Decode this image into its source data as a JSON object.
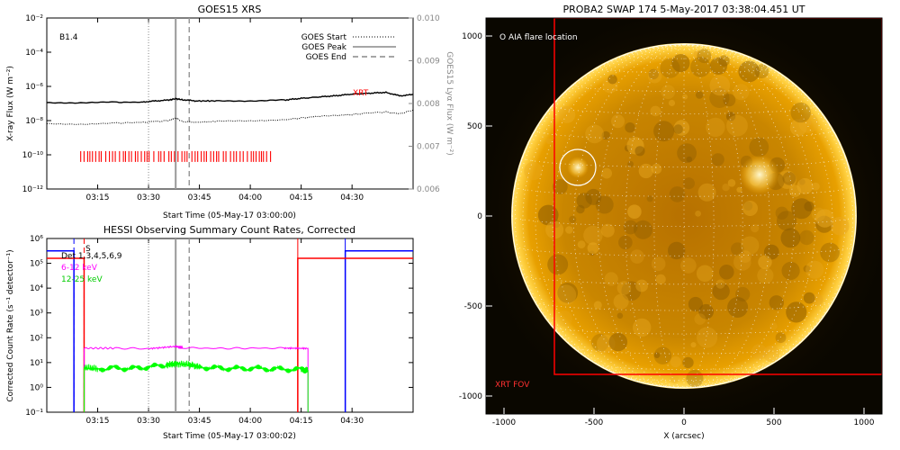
{
  "chart_data": [
    {
      "type": "line",
      "title": "GOES15 XRS",
      "xlabel": "Start Time (05-May-17 03:00:00)",
      "ylabel": "X-ray Flux (W m⁻²)",
      "y2label": "GOES15 Lyα Flux (W m⁻²)",
      "annotation": "B1.4",
      "x_ticks": [
        "03:15",
        "03:30",
        "03:45",
        "04:00",
        "04:15",
        "04:30"
      ],
      "y_ticks": [
        "10⁻²",
        "10⁻⁴",
        "10⁻⁶",
        "10⁻⁸",
        "10⁻¹⁰",
        "10⁻¹²"
      ],
      "y2_ticks": [
        "0.010",
        "0.009",
        "0.008",
        "0.007",
        "0.006"
      ],
      "xlim_minutes": [
        0,
        108
      ],
      "ylim_log10": [
        -12,
        -2
      ],
      "y2lim": [
        0.006,
        0.01
      ],
      "legend": [
        {
          "name": "GOES Start",
          "style": "dotted"
        },
        {
          "name": "GOES Peak",
          "style": "solid"
        },
        {
          "name": "GOES End",
          "style": "dashed"
        }
      ],
      "markers_minutes": {
        "start": 30,
        "peak": 38,
        "end": 42
      },
      "series": [
        {
          "name": "",
          "color": "#000000",
          "style": "solid",
          "x": [
            0,
            10,
            20,
            28,
            32,
            36,
            38,
            40,
            44,
            50,
            60,
            70,
            75,
            80,
            85,
            90,
            95,
            100,
            104,
            108
          ],
          "y_log10": [
            -6.95,
            -6.95,
            -6.93,
            -6.92,
            -6.85,
            -6.8,
            -6.72,
            -6.78,
            -6.85,
            -6.85,
            -6.84,
            -6.8,
            -6.7,
            -6.62,
            -6.55,
            -6.45,
            -6.4,
            -6.35,
            -6.55,
            -6.48
          ]
        },
        {
          "name": "",
          "color": "#000000",
          "style": "dotted",
          "x": [
            0,
            10,
            20,
            28,
            32,
            36,
            38,
            40,
            44,
            50,
            60,
            70,
            75,
            80,
            85,
            90,
            95,
            100,
            104,
            108
          ],
          "y_log10": [
            -8.2,
            -8.2,
            -8.15,
            -8.1,
            -8.05,
            -8.0,
            -7.85,
            -8.05,
            -8.1,
            -8.05,
            -8.0,
            -7.95,
            -7.85,
            -7.75,
            -7.7,
            -7.65,
            -7.55,
            -7.5,
            -7.6,
            -7.4
          ]
        }
      ],
      "xrt_label": "XRT",
      "xrt_marks_minutes": {
        "start": 10,
        "end": 66,
        "y_log10": -10.1
      }
    },
    {
      "type": "line",
      "title": "HESSI Observing Summary Count Rates, Corrected",
      "xlabel": "Start Time (05-May-17 03:00:02)",
      "ylabel": "Corrected Count Rate (s⁻¹ detector⁻¹)",
      "x_ticks": [
        "03:15",
        "03:30",
        "03:45",
        "04:00",
        "04:15",
        "04:30"
      ],
      "y_ticks": [
        "10⁶",
        "10⁵",
        "10⁴",
        "10³",
        "10²",
        "10¹",
        "10⁰",
        "10⁻¹"
      ],
      "xlim_minutes": [
        0,
        108
      ],
      "ylim_log10": [
        -1,
        6
      ],
      "detectors_label": "Det 1,3,4,5,6,9",
      "s_label": "S",
      "legend": [
        {
          "name": "6-12 keV",
          "color": "#ff00ff"
        },
        {
          "name": "12-25 keV",
          "color": "#00ff00"
        }
      ],
      "markers_minutes": {
        "start": 30,
        "peak": 38,
        "end": 42,
        "dashed_blue": 8,
        "dashed_red": 11,
        "solid_red": 74,
        "solid_blue": 88
      },
      "series": [
        {
          "name": "6-12 keV",
          "color": "#ff00ff",
          "x": [
            11,
            20,
            30,
            38,
            40,
            50,
            60,
            70,
            77
          ],
          "y_log10": [
            1.58,
            1.58,
            1.56,
            1.65,
            1.6,
            1.57,
            1.58,
            1.58,
            1.57
          ]
        },
        {
          "name": "12-25 keV",
          "color": "#00ff00",
          "x": [
            11,
            15,
            20,
            25,
            30,
            35,
            38,
            42,
            45,
            50,
            55,
            60,
            65,
            70,
            75,
            77
          ],
          "y_log10": [
            0.8,
            0.75,
            0.78,
            0.76,
            0.82,
            0.9,
            0.95,
            0.92,
            0.82,
            0.78,
            0.76,
            0.77,
            0.75,
            0.73,
            0.72,
            0.7
          ]
        }
      ],
      "attenuator_blue_log10": 5.5,
      "attenuator_red_log10": 5.2
    },
    {
      "type": "heatmap",
      "title": "PROBA2 SWAP 174   5-May-2017 03:38:04.451 UT",
      "xlabel": "X (arcsec)",
      "ylabel": "",
      "x_ticks": [
        "-1000",
        "-500",
        "0",
        "500",
        "1000"
      ],
      "y_ticks": [
        "1000",
        "500",
        "0",
        "-500",
        "-1000"
      ],
      "xlim_arcsec": [
        -1100,
        1100
      ],
      "ylim_arcsec": [
        -1100,
        1100
      ],
      "solar_radius_arcsec": 953,
      "aia_label": "O AIA flare location",
      "aia_flare_arcsec": {
        "x": -590,
        "y": 270,
        "r": 100
      },
      "xrt_fov_label": "XRT FOV",
      "xrt_fov_arcsec": {
        "x0": -720,
        "y0": -880,
        "x1": 1100,
        "y1": 1100
      },
      "active_region_arcsec": {
        "x": 420,
        "y": 230
      }
    }
  ],
  "colors": {
    "axis": "#000000",
    "grey_tick": "#888888",
    "red": "#ff0000",
    "blue": "#0000ff",
    "magenta": "#ff00ff",
    "green": "#00ff00",
    "sun": "#e8a000"
  }
}
